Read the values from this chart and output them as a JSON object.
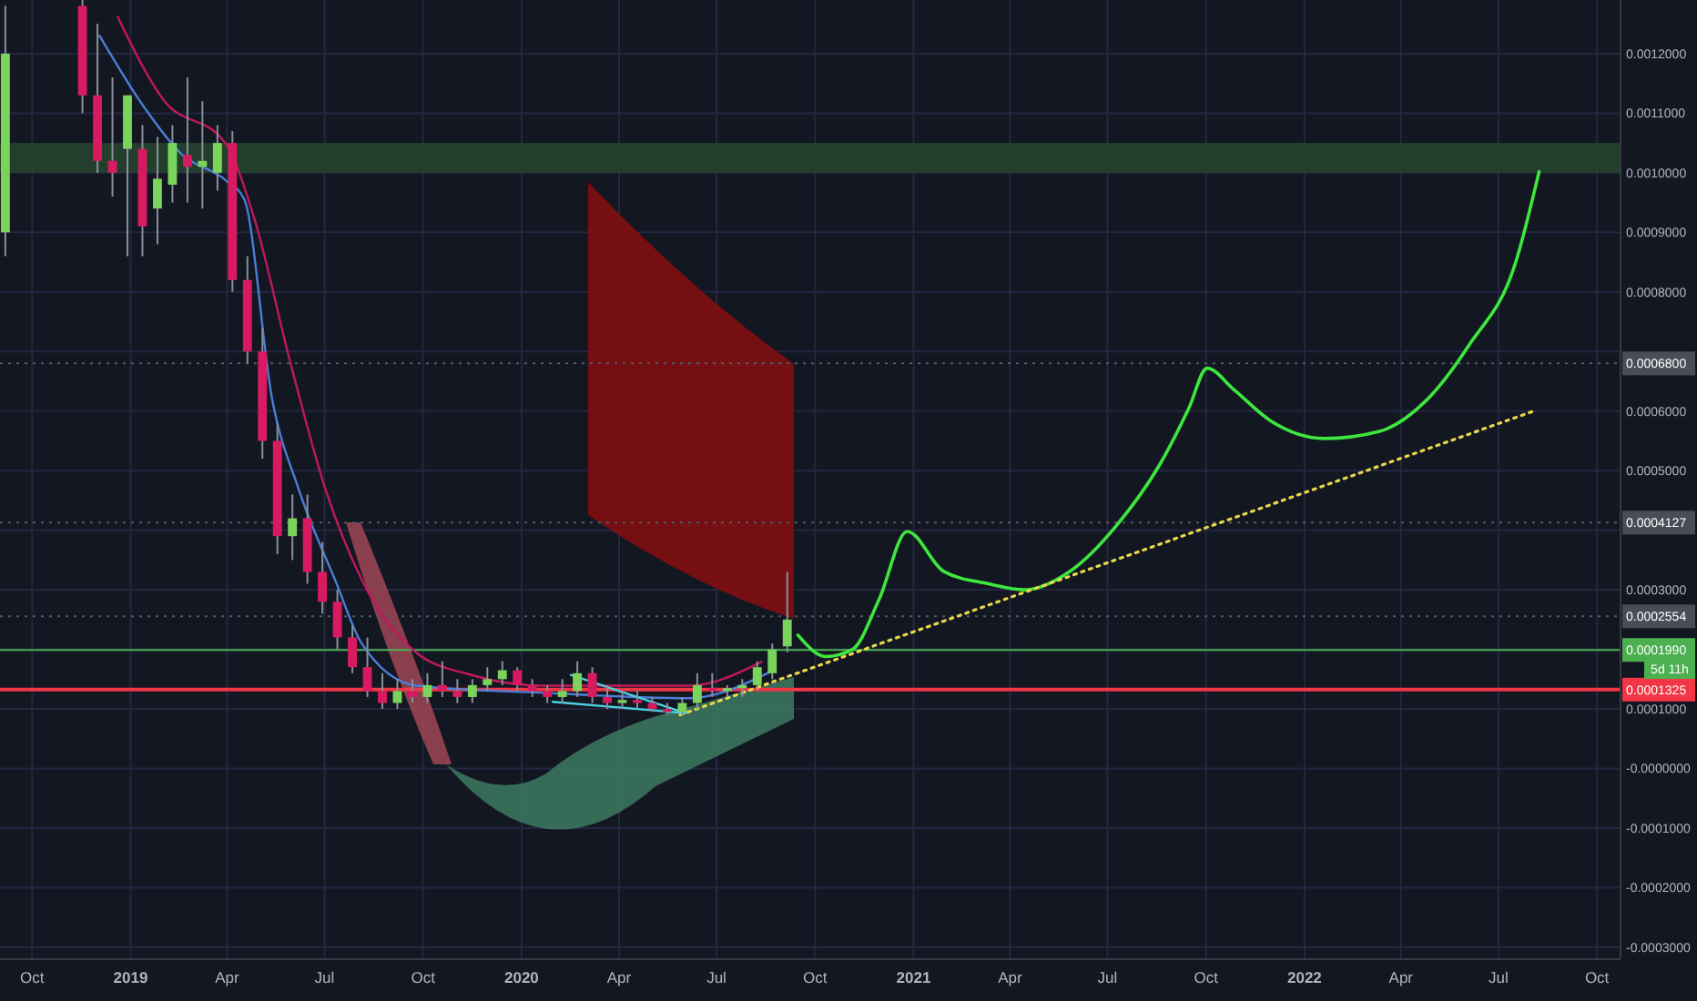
{
  "chart_data": {
    "type": "candlestick",
    "x": [
      "2018-09-06",
      "2018-11-17",
      "2018-12-01",
      "2018-12-15",
      "2018-12-29",
      "2019-01-12",
      "2019-01-26",
      "2019-02-09",
      "2019-02-23",
      "2019-03-09",
      "2019-03-23",
      "2019-04-06",
      "2019-04-20",
      "2019-05-04",
      "2019-05-18",
      "2019-06-01",
      "2019-06-15",
      "2019-06-29",
      "2019-07-13",
      "2019-07-27",
      "2019-08-10",
      "2019-08-24",
      "2019-09-07",
      "2019-09-21",
      "2019-10-05",
      "2019-10-19",
      "2019-11-02",
      "2019-11-16",
      "2019-11-30",
      "2019-12-14",
      "2019-12-28",
      "2020-01-11",
      "2020-01-25",
      "2020-02-08",
      "2020-02-22",
      "2020-03-07",
      "2020-03-21",
      "2020-04-04",
      "2020-04-18",
      "2020-05-02",
      "2020-05-16",
      "2020-05-30",
      "2020-06-13",
      "2020-06-27",
      "2020-07-11",
      "2020-07-25",
      "2020-08-08",
      "2020-08-22",
      "2020-09-05"
    ],
    "ohlc": [
      [
        0.0009,
        0.00128,
        0.00086,
        0.0012
      ],
      [
        0.00128,
        0.00129,
        0.0011,
        0.00113
      ],
      [
        0.00113,
        0.00125,
        0.001,
        0.00102
      ],
      [
        0.00102,
        0.00116,
        0.00096,
        0.001
      ],
      [
        0.00104,
        0.00113,
        0.00086,
        0.00113
      ],
      [
        0.00104,
        0.00108,
        0.00086,
        0.00091
      ],
      [
        0.00094,
        0.00106,
        0.00088,
        0.00099
      ],
      [
        0.00098,
        0.00108,
        0.00095,
        0.00105
      ],
      [
        0.00103,
        0.00116,
        0.00095,
        0.00101
      ],
      [
        0.00101,
        0.00112,
        0.00094,
        0.00102
      ],
      [
        0.001,
        0.00108,
        0.00097,
        0.00105
      ],
      [
        0.00105,
        0.00107,
        0.0008,
        0.00082
      ],
      [
        0.00082,
        0.00086,
        0.00068,
        0.0007
      ],
      [
        0.0007,
        0.00074,
        0.00052,
        0.00055
      ],
      [
        0.00055,
        0.00058,
        0.00036,
        0.00039
      ],
      [
        0.00039,
        0.00046,
        0.00035,
        0.00042
      ],
      [
        0.00042,
        0.00046,
        0.00031,
        0.00033
      ],
      [
        0.00033,
        0.00038,
        0.00026,
        0.00028
      ],
      [
        0.00028,
        0.0003,
        0.0002,
        0.00022
      ],
      [
        0.00022,
        0.00024,
        0.00016,
        0.00017
      ],
      [
        0.00017,
        0.00022,
        0.00012,
        0.00013
      ],
      [
        0.00013,
        0.00016,
        0.0001,
        0.00011
      ],
      [
        0.00011,
        0.00015,
        0.0001,
        0.00013
      ],
      [
        0.00013,
        0.00015,
        0.00011,
        0.00012
      ],
      [
        0.00012,
        0.00016,
        0.00011,
        0.00014
      ],
      [
        0.00014,
        0.00018,
        0.00012,
        0.00013
      ],
      [
        0.00013,
        0.00015,
        0.00011,
        0.00012
      ],
      [
        0.00012,
        0.00015,
        0.00011,
        0.00014
      ],
      [
        0.00014,
        0.00017,
        0.00013,
        0.00015
      ],
      [
        0.00015,
        0.00018,
        0.00014,
        0.000165
      ],
      [
        0.000165,
        0.00017,
        0.00013,
        0.00014
      ],
      [
        0.00014,
        0.00015,
        0.00012,
        0.00013
      ],
      [
        0.00013,
        0.00014,
        0.00011,
        0.00012
      ],
      [
        0.00012,
        0.00015,
        0.00011,
        0.00013
      ],
      [
        0.00013,
        0.00018,
        0.00012,
        0.00016
      ],
      [
        0.00016,
        0.00017,
        0.00011,
        0.00012
      ],
      [
        0.00012,
        0.00014,
        0.0001,
        0.00011
      ],
      [
        0.00011,
        0.00013,
        0.0001,
        0.000115
      ],
      [
        0.000115,
        0.00013,
        0.0001,
        0.00011
      ],
      [
        0.00011,
        0.00012,
        9.5e-05,
        0.0001
      ],
      [
        0.0001,
        0.00011,
        9e-05,
        9.5e-05
      ],
      [
        9.5e-05,
        0.00012,
        9e-05,
        0.00011
      ],
      [
        0.00011,
        0.00016,
        0.0001,
        0.00014
      ],
      [
        0.000135,
        0.00016,
        0.00012,
        0.00013
      ],
      [
        0.00013,
        0.00014,
        0.00012,
        0.000135
      ],
      [
        0.000135,
        0.00015,
        0.00012,
        0.00014
      ],
      [
        0.00014,
        0.00018,
        0.00013,
        0.00017
      ],
      [
        0.00016,
        0.00021,
        0.00015,
        0.0002
      ],
      [
        0.000205,
        0.00033,
        0.000195,
        0.00025
      ]
    ],
    "series": [
      {
        "type": "line",
        "color": "#c2185b",
        "x": [
          "2018-12-20",
          "2019-01-31",
          "2019-03-31",
          "2019-04-26",
          "2019-05-30",
          "2019-07-02",
          "2019-08-05",
          "2019-09-25",
          "2019-11-15",
          "2020-01-22",
          "2020-06-05",
          "2020-08-12"
        ],
        "values": [
          0.001261,
          0.001124,
          0.001048,
          0.000926,
          0.000682,
          0.000468,
          0.000316,
          0.000194,
          0.000157,
          0.000139,
          0.000139,
          0.000179
        ]
      },
      {
        "type": "line",
        "color": "#4a7fd6",
        "x": [
          "2018-12-03",
          "2019-01-14",
          "2019-02-17",
          "2019-03-31",
          "2019-04-17",
          "2019-05-13",
          "2019-06-07",
          "2019-07-11",
          "2019-08-05",
          "2019-09-25",
          "2020-01-22",
          "2020-06-05",
          "2020-08-21"
        ],
        "values": [
          0.00123,
          0.001109,
          0.001032,
          0.000987,
          0.000956,
          0.000621,
          0.000468,
          0.000316,
          0.000209,
          0.000139,
          0.000127,
          0.000118,
          0.000163
        ]
      },
      {
        "type": "line",
        "color": "#3ee63e",
        "x": [
          "2020-09-15",
          "2020-10-11",
          "2020-11-05",
          "2020-11-30",
          "2020-12-26",
          "2021-01-29",
          "2021-03-12",
          "2021-04-15",
          "2021-05-27",
          "2021-07-09",
          "2021-08-20",
          "2021-09-15",
          "2021-10-02",
          "2021-10-27",
          "2021-11-30",
          "2022-01-20",
          "2022-03-12",
          "2022-04-23",
          "2022-06-04",
          "2022-07-17",
          "2022-08-08"
        ],
        "values": [
          0.000224,
          0.000188,
          0.0002,
          0.000285,
          0.000398,
          0.000331,
          0.00031,
          0.0003,
          0.000331,
          0.000407,
          0.000514,
          0.000605,
          0.000672,
          0.000636,
          0.000584,
          0.000554,
          0.000566,
          0.000615,
          0.000712,
          0.000849,
          0.001002
        ]
      },
      {
        "type": "line",
        "color": "#e6d84a",
        "line_style": "dotted",
        "x": [
          "2020-05-28",
          "2022-08-03"
        ],
        "values": [
          9e-05,
          0.0006
        ]
      },
      {
        "type": "line",
        "color": "#4dd0e1",
        "x": [
          "2020-02-16",
          "2020-06-02"
        ],
        "values": [
          0.000157,
          9.3e-05
        ]
      },
      {
        "type": "line",
        "color": "#4dd0e1",
        "x": [
          "2020-01-30",
          "2020-06-02"
        ],
        "values": [
          0.000112,
          9.3e-05
        ]
      }
    ],
    "xlim": [
      "2018-09-01",
      "2022-10-23"
    ],
    "xticks": [
      {
        "value": "2018-10-01",
        "label": "Oct"
      },
      {
        "value": "2019-01-01",
        "label": "2019"
      },
      {
        "value": "2019-04-01",
        "label": "Apr"
      },
      {
        "value": "2019-07-01",
        "label": "Jul"
      },
      {
        "value": "2019-10-01",
        "label": "Oct"
      },
      {
        "value": "2020-01-01",
        "label": "2020"
      },
      {
        "value": "2020-04-01",
        "label": "Apr"
      },
      {
        "value": "2020-07-01",
        "label": "Jul"
      },
      {
        "value": "2020-10-01",
        "label": "Oct"
      },
      {
        "value": "2021-01-01",
        "label": "2021"
      },
      {
        "value": "2021-04-01",
        "label": "Apr"
      },
      {
        "value": "2021-07-01",
        "label": "Jul"
      },
      {
        "value": "2021-10-01",
        "label": "Oct"
      },
      {
        "value": "2022-01-01",
        "label": "2022"
      },
      {
        "value": "2022-04-01",
        "label": "Apr"
      },
      {
        "value": "2022-07-01",
        "label": "Jul"
      },
      {
        "value": "2022-10-01",
        "label": "Oct"
      }
    ],
    "ylim": [
      -0.00032,
      0.00129
    ],
    "yticks": [
      {
        "value": 0.0012,
        "label": "0.0012000"
      },
      {
        "value": 0.0011,
        "label": "0.0011000"
      },
      {
        "value": 0.001,
        "label": "0.0010000"
      },
      {
        "value": 0.0009,
        "label": "0.0009000"
      },
      {
        "value": 0.0008,
        "label": "0.0008000"
      },
      {
        "value": 0.0007,
        "label": null
      },
      {
        "value": 0.0006,
        "label": "0.0006000"
      },
      {
        "value": 0.0005,
        "label": "0.0005000"
      },
      {
        "value": 0.0004,
        "label": null
      },
      {
        "value": 0.0003,
        "label": "0.0003000"
      },
      {
        "value": 0.0002,
        "label": null
      },
      {
        "value": 0.0001,
        "label": "0.0001000"
      },
      {
        "value": 0,
        "label": "-0.0000000"
      },
      {
        "value": -0.0001,
        "label": "-0.0001000"
      },
      {
        "value": -0.0002,
        "label": "-0.0002000"
      },
      {
        "value": -0.0003,
        "label": "-0.0003000"
      }
    ],
    "grid": true,
    "bands": [
      {
        "axis": "y",
        "from": 0.001,
        "to": 0.00105,
        "color": "#27452e"
      }
    ],
    "ref_lines": [
      {
        "axis": "y",
        "value": 0.00068,
        "label": "0.0006800",
        "color": "#555a66",
        "line_style": "dotted"
      },
      {
        "axis": "y",
        "value": 0.0004127,
        "label": "0.0004127",
        "color": "#555a66",
        "line_style": "dotted"
      },
      {
        "axis": "y",
        "value": 0.0002554,
        "label": "0.0002554",
        "color": "#555a66",
        "line_style": "dotted"
      },
      {
        "axis": "y",
        "value": 0.000199,
        "label": "0.0001990",
        "color": "#4caf50",
        "line_style": "solid"
      },
      {
        "axis": "y",
        "value": 0.0001325,
        "label": "0.0001325",
        "color": "#f23645",
        "line_style": "solid"
      }
    ],
    "annotations": [
      "5d 11h"
    ]
  }
}
